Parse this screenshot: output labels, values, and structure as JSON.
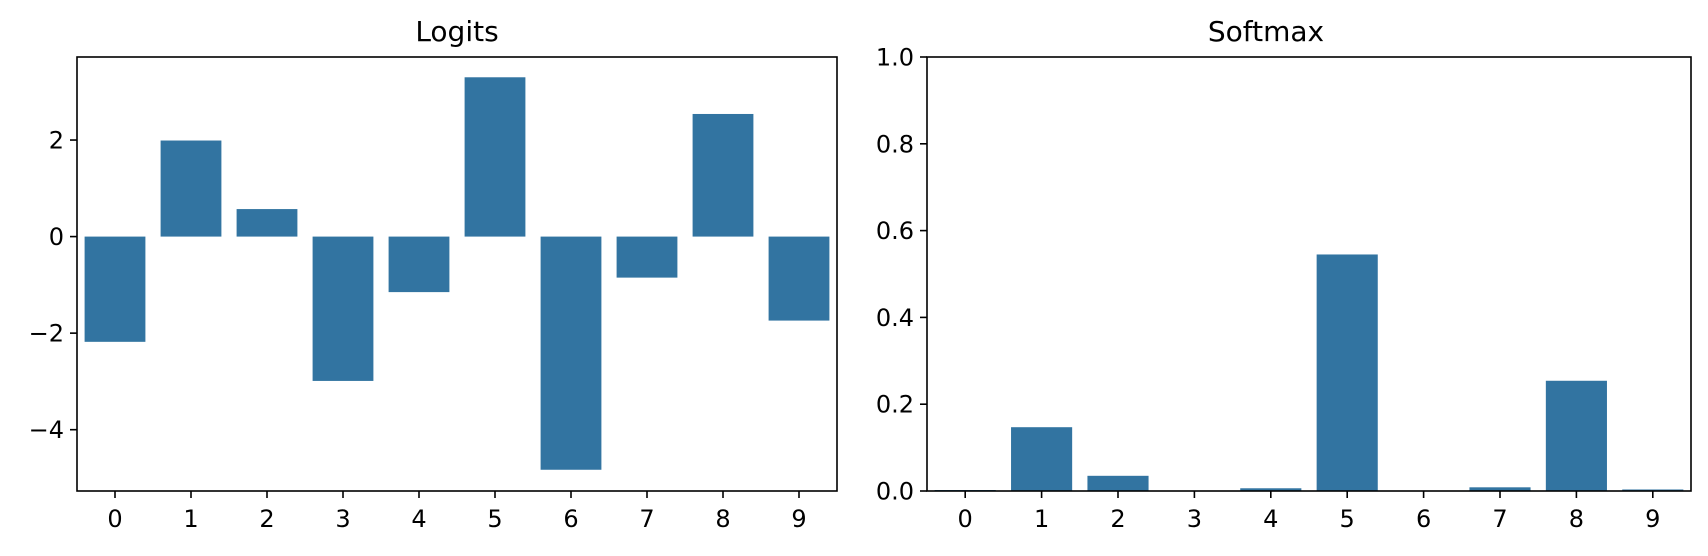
{
  "chart_data": [
    {
      "type": "bar",
      "title": "Logits",
      "xlabel": "",
      "ylabel": "",
      "categories": [
        "0",
        "1",
        "2",
        "3",
        "4",
        "5",
        "6",
        "7",
        "8",
        "9"
      ],
      "values": [
        -2.18,
        1.99,
        0.57,
        -2.99,
        -1.15,
        3.3,
        -4.83,
        -0.85,
        2.54,
        -1.74
      ],
      "ylim": [
        -5.27,
        3.72
      ],
      "yticks": [
        -4,
        -2,
        0,
        2
      ],
      "ytick_labels": [
        "−4",
        "−2",
        "0",
        "2"
      ],
      "grid": false,
      "color": "#3274a1"
    },
    {
      "type": "bar",
      "title": "Softmax",
      "xlabel": "",
      "ylabel": "",
      "categories": [
        "0",
        "1",
        "2",
        "3",
        "4",
        "5",
        "6",
        "7",
        "8",
        "9"
      ],
      "values": [
        0.0023,
        0.147,
        0.035,
        0.001,
        0.0063,
        0.545,
        0.0002,
        0.0085,
        0.254,
        0.0035
      ],
      "ylim": [
        0.0,
        1.0
      ],
      "yticks": [
        0.0,
        0.2,
        0.4,
        0.6,
        0.8,
        1.0
      ],
      "ytick_labels": [
        "0.0",
        "0.2",
        "0.4",
        "0.6",
        "0.8",
        "1.0"
      ],
      "grid": false,
      "color": "#3274a1"
    }
  ]
}
